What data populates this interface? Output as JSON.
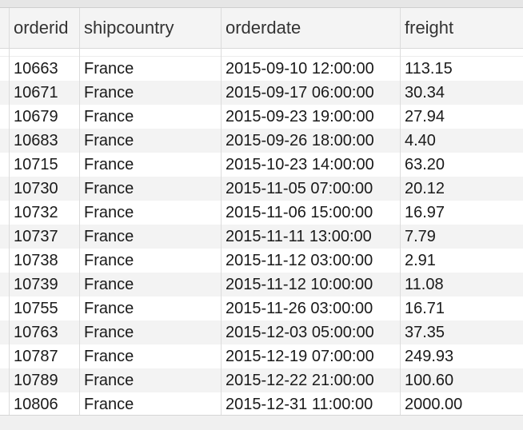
{
  "columns": {
    "orderid": "orderid",
    "shipcountry": "shipcountry",
    "orderdate": "orderdate",
    "freight": "freight"
  },
  "rows": [
    {
      "orderid": "10663",
      "shipcountry": "France",
      "orderdate": "2015-09-10 12:00:00",
      "freight": "113.15"
    },
    {
      "orderid": "10671",
      "shipcountry": "France",
      "orderdate": "2015-09-17 06:00:00",
      "freight": "30.34"
    },
    {
      "orderid": "10679",
      "shipcountry": "France",
      "orderdate": "2015-09-23 19:00:00",
      "freight": "27.94"
    },
    {
      "orderid": "10683",
      "shipcountry": "France",
      "orderdate": "2015-09-26 18:00:00",
      "freight": "4.40"
    },
    {
      "orderid": "10715",
      "shipcountry": "France",
      "orderdate": "2015-10-23 14:00:00",
      "freight": "63.20"
    },
    {
      "orderid": "10730",
      "shipcountry": "France",
      "orderdate": "2015-11-05 07:00:00",
      "freight": "20.12"
    },
    {
      "orderid": "10732",
      "shipcountry": "France",
      "orderdate": "2015-11-06 15:00:00",
      "freight": "16.97"
    },
    {
      "orderid": "10737",
      "shipcountry": "France",
      "orderdate": "2015-11-11 13:00:00",
      "freight": "7.79"
    },
    {
      "orderid": "10738",
      "shipcountry": "France",
      "orderdate": "2015-11-12 03:00:00",
      "freight": "2.91"
    },
    {
      "orderid": "10739",
      "shipcountry": "France",
      "orderdate": "2015-11-12 10:00:00",
      "freight": "11.08"
    },
    {
      "orderid": "10755",
      "shipcountry": "France",
      "orderdate": "2015-11-26 03:00:00",
      "freight": "16.71"
    },
    {
      "orderid": "10763",
      "shipcountry": "France",
      "orderdate": "2015-12-03 05:00:00",
      "freight": "37.35"
    },
    {
      "orderid": "10787",
      "shipcountry": "France",
      "orderdate": "2015-12-19 07:00:00",
      "freight": "249.93"
    },
    {
      "orderid": "10789",
      "shipcountry": "France",
      "orderdate": "2015-12-22 21:00:00",
      "freight": "100.60"
    },
    {
      "orderid": "10806",
      "shipcountry": "France",
      "orderdate": "2015-12-31 11:00:00",
      "freight": "2000.00"
    }
  ]
}
